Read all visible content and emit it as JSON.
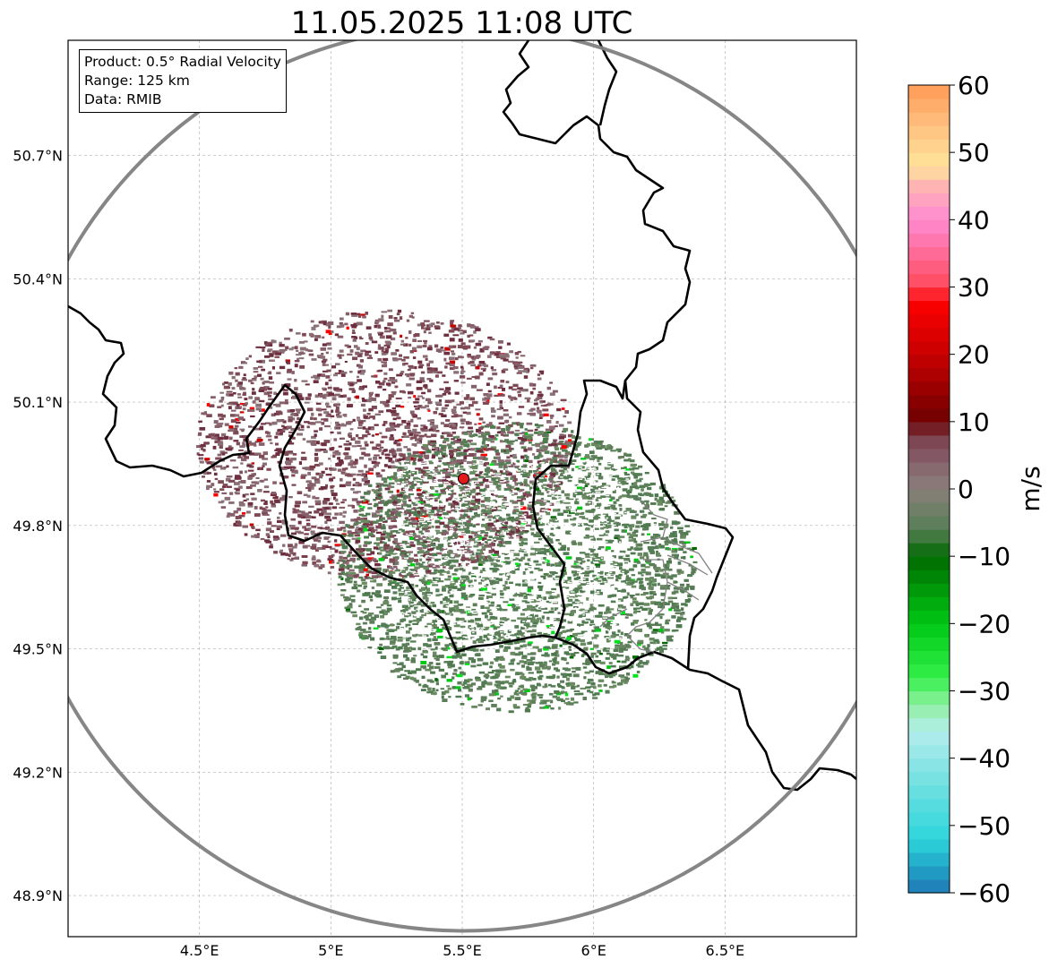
{
  "title": "11.05.2025 11:08 UTC",
  "info_box": {
    "product": "Product: 0.5° Radial Velocity",
    "range": "Range: 125 km",
    "data": "Data: RMIB"
  },
  "map": {
    "lon_range": [
      4.0,
      7.0
    ],
    "lat_range": [
      48.8,
      50.98
    ],
    "radar_site": {
      "lon": 5.505,
      "lat": 49.914
    },
    "range_ring_km": 125,
    "lon_ticks": [
      {
        "value": 4.5,
        "label": "4.5°E"
      },
      {
        "value": 5.0,
        "label": "5°E"
      },
      {
        "value": 5.5,
        "label": "5.5°E"
      },
      {
        "value": 6.0,
        "label": "6°E"
      },
      {
        "value": 6.5,
        "label": "6.5°E"
      }
    ],
    "lat_ticks": [
      {
        "value": 48.9,
        "label": "48.9°N"
      },
      {
        "value": 49.2,
        "label": "49.2°N"
      },
      {
        "value": 49.5,
        "label": "49.5°N"
      },
      {
        "value": 49.8,
        "label": "49.8°N"
      },
      {
        "value": 50.1,
        "label": "50.1°N"
      },
      {
        "value": 50.4,
        "label": "50.4°N"
      },
      {
        "value": 50.7,
        "label": "50.7°N"
      }
    ],
    "colors": {
      "grid": "#b0b0b0",
      "ring": "#808080",
      "border": "#000000",
      "regions": "#808080",
      "site": "#e31a1c"
    },
    "echo_regions": [
      {
        "name": "approaching",
        "center": {
          "lon": 5.7,
          "lat": 49.7
        },
        "color": "#5e7d59"
      },
      {
        "name": "receding",
        "center": {
          "lon": 5.2,
          "lat": 50.0
        },
        "color": "#7d4a55"
      }
    ]
  },
  "colorbar": {
    "label": "m/s",
    "min": -60,
    "max": 60,
    "ticks": [
      -60,
      -50,
      -40,
      -30,
      -20,
      -10,
      0,
      10,
      20,
      30,
      40,
      50,
      60
    ],
    "tick_labels": [
      "−60",
      "−50",
      "−40",
      "−30",
      "−20",
      "−10",
      "0",
      "10",
      "20",
      "30",
      "40",
      "50",
      "60"
    ],
    "stops": [
      {
        "v": -60,
        "c": "#1f77b4"
      },
      {
        "v": -56,
        "c": "#22a6c8"
      },
      {
        "v": -52,
        "c": "#2dd6dc"
      },
      {
        "v": -44,
        "c": "#6fe0e0"
      },
      {
        "v": -36,
        "c": "#b4eded"
      },
      {
        "v": -32,
        "c": "#90f0a0"
      },
      {
        "v": -28,
        "c": "#33f04a"
      },
      {
        "v": -20,
        "c": "#00c814"
      },
      {
        "v": -10,
        "c": "#006a00"
      },
      {
        "v": -6,
        "c": "#567e56"
      },
      {
        "v": 0,
        "c": "#8a7f7a"
      },
      {
        "v": 4,
        "c": "#86616c"
      },
      {
        "v": 8,
        "c": "#7a3e4a"
      },
      {
        "v": 10,
        "c": "#6e0000"
      },
      {
        "v": 20,
        "c": "#c80000"
      },
      {
        "v": 28,
        "c": "#ff0000"
      },
      {
        "v": 30,
        "c": "#ff4a5c"
      },
      {
        "v": 40,
        "c": "#ff8ad2"
      },
      {
        "v": 45,
        "c": "#ffb4b4"
      },
      {
        "v": 48,
        "c": "#ffe49a"
      },
      {
        "v": 54,
        "c": "#ffc080"
      },
      {
        "v": 60,
        "c": "#ff9a55"
      }
    ]
  }
}
